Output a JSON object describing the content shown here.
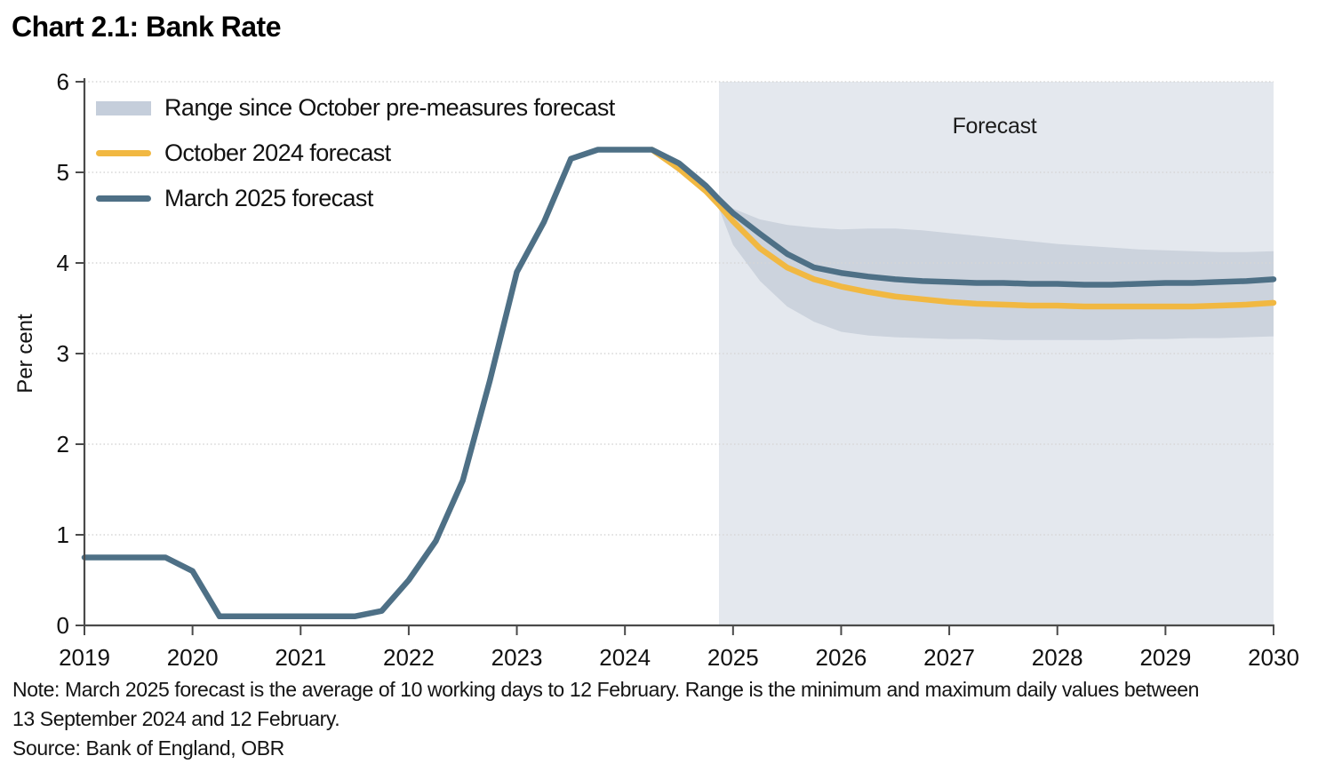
{
  "title": "Chart 2.1: Bank Rate",
  "forecast_label": "Forecast",
  "colors": {
    "march_line": "#4E7086",
    "october_line": "#F1B842",
    "range_band": "#CCD3DD",
    "forecast_bg": "#E4E8EE",
    "legend_band_swatch": "#C5CEDB",
    "grid": "#D6D6D6",
    "axis": "#4A4A4A",
    "text": "#111111"
  },
  "legend": {
    "items": [
      {
        "label": "Range since October pre-measures forecast",
        "type": "band",
        "color": "#C5CEDB"
      },
      {
        "label": "October 2024 forecast",
        "type": "line",
        "color": "#F1B842"
      },
      {
        "label": "March 2025 forecast",
        "type": "line",
        "color": "#4E7086"
      }
    ]
  },
  "axes": {
    "y_label": "Per cent",
    "y_ticks": [
      0,
      1,
      2,
      3,
      4,
      5,
      6
    ],
    "x_ticks": [
      2019,
      2020,
      2021,
      2022,
      2023,
      2024,
      2025,
      2026,
      2027,
      2028,
      2029,
      2030
    ]
  },
  "notes": {
    "line1": "Note: March 2025 forecast is the average of 10 working days to 12 February. Range is the minimum and maximum daily values between",
    "line2": "13 September 2024 and 12 February.",
    "source": "Source: Bank of England, OBR"
  },
  "chart_data": {
    "type": "line",
    "title": "Chart 2.1: Bank Rate",
    "xlabel": "",
    "ylabel": "Per cent",
    "xlim": [
      2019,
      2030
    ],
    "ylim": [
      0,
      6
    ],
    "grid": "horizontal-dotted",
    "legend_position": "top-left-inside",
    "forecast_region_start": 2024.87,
    "forecast_region_label": "Forecast",
    "series": [
      {
        "name": "October 2024 forecast",
        "color": "#F1B842",
        "x": [
          2024.25,
          2024.5,
          2024.75,
          2024.87,
          2025.0,
          2025.25,
          2025.5,
          2025.75,
          2026.0,
          2026.25,
          2026.5,
          2026.75,
          2027.0,
          2027.25,
          2027.5,
          2027.75,
          2028.0,
          2028.25,
          2028.5,
          2028.75,
          2029.0,
          2029.25,
          2029.5,
          2029.75,
          2030.0
        ],
        "y": [
          5.25,
          5.04,
          4.79,
          4.64,
          4.46,
          4.16,
          3.95,
          3.82,
          3.74,
          3.68,
          3.63,
          3.6,
          3.57,
          3.55,
          3.54,
          3.53,
          3.53,
          3.52,
          3.52,
          3.52,
          3.52,
          3.52,
          3.53,
          3.54,
          3.56
        ]
      },
      {
        "name": "March 2025 forecast",
        "color": "#4E7086",
        "x": [
          2019.0,
          2019.25,
          2019.5,
          2019.75,
          2020.0,
          2020.25,
          2020.5,
          2020.75,
          2021.0,
          2021.25,
          2021.5,
          2021.75,
          2022.0,
          2022.25,
          2022.5,
          2022.75,
          2023.0,
          2023.25,
          2023.5,
          2023.75,
          2024.0,
          2024.25,
          2024.5,
          2024.75,
          2024.87,
          2025.0,
          2025.25,
          2025.5,
          2025.75,
          2026.0,
          2026.25,
          2026.5,
          2026.75,
          2027.0,
          2027.25,
          2027.5,
          2027.75,
          2028.0,
          2028.25,
          2028.5,
          2028.75,
          2029.0,
          2029.25,
          2029.5,
          2029.75,
          2030.0
        ],
        "y": [
          0.75,
          0.75,
          0.75,
          0.75,
          0.6,
          0.1,
          0.1,
          0.1,
          0.1,
          0.1,
          0.1,
          0.16,
          0.5,
          0.93,
          1.6,
          2.7,
          3.9,
          4.45,
          5.15,
          5.25,
          5.25,
          5.25,
          5.1,
          4.85,
          4.7,
          4.55,
          4.32,
          4.1,
          3.95,
          3.89,
          3.85,
          3.82,
          3.8,
          3.79,
          3.78,
          3.78,
          3.77,
          3.77,
          3.76,
          3.76,
          3.77,
          3.78,
          3.78,
          3.79,
          3.8,
          3.82
        ]
      }
    ],
    "range_band": {
      "name": "Range since October pre-measures forecast",
      "color": "#CCD3DD",
      "x": [
        2024.87,
        2025.0,
        2025.25,
        2025.5,
        2025.75,
        2026.0,
        2026.25,
        2026.5,
        2026.75,
        2027.0,
        2027.25,
        2027.5,
        2027.75,
        2028.0,
        2028.25,
        2028.5,
        2028.75,
        2029.0,
        2029.25,
        2029.5,
        2029.75,
        2030.0
      ],
      "upper": [
        4.72,
        4.6,
        4.48,
        4.42,
        4.39,
        4.37,
        4.38,
        4.38,
        4.36,
        4.33,
        4.3,
        4.27,
        4.24,
        4.21,
        4.19,
        4.17,
        4.15,
        4.14,
        4.13,
        4.12,
        4.12,
        4.13
      ],
      "lower": [
        4.6,
        4.2,
        3.8,
        3.52,
        3.35,
        3.24,
        3.2,
        3.18,
        3.17,
        3.16,
        3.16,
        3.15,
        3.15,
        3.15,
        3.15,
        3.15,
        3.16,
        3.16,
        3.17,
        3.17,
        3.18,
        3.19
      ]
    }
  }
}
